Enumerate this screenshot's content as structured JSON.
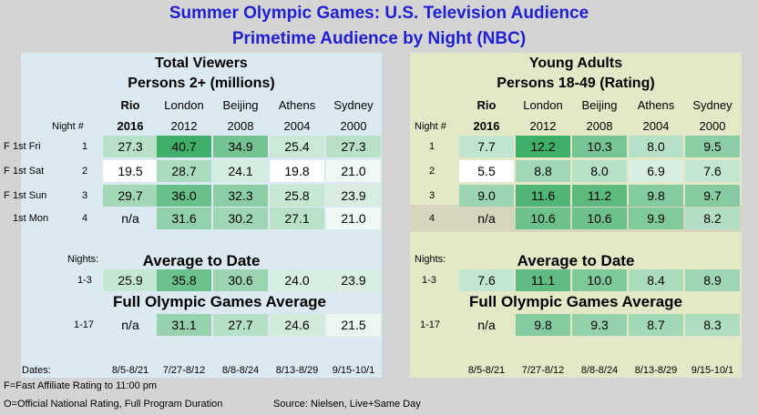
{
  "title": "Summer Olympic Games: U.S. Television Audience",
  "subtitle": "Primetime Audience by Night (NBC)",
  "chart_data": {
    "type": "table",
    "night_label": "Night #",
    "nights_label": "Nights:",
    "games": [
      {
        "city": "Rio",
        "year": "2016",
        "dates": "8/5-8/21",
        "highlight": true
      },
      {
        "city": "London",
        "year": "2012",
        "dates": "7/27-8/12"
      },
      {
        "city": "Beijing",
        "year": "2008",
        "dates": "8/8-8/24"
      },
      {
        "city": "Athens",
        "year": "2004",
        "dates": "8/13-8/29"
      },
      {
        "city": "Sydney",
        "year": "2000",
        "dates": "9/15-10/1"
      }
    ],
    "rows": [
      {
        "flag": "F",
        "label": "1st Fri",
        "night": "1"
      },
      {
        "flag": "F",
        "label": "1st Sat",
        "night": "2"
      },
      {
        "flag": "F",
        "label": "1st Sun",
        "night": "3"
      },
      {
        "flag": "",
        "label": "1st Mon",
        "night": "4"
      }
    ],
    "avg_nights": "1-3",
    "full_nights": "1-17",
    "dates_label": "Dates:",
    "panels": [
      {
        "title": "Total Viewers",
        "subtitle": "Persons 2+ (millions)",
        "nightly": [
          [
            "27.3",
            "40.7",
            "34.9",
            "25.4",
            "27.3"
          ],
          [
            "19.5",
            "28.7",
            "24.1",
            "19.8",
            "21.0"
          ],
          [
            "29.7",
            "36.0",
            "32.3",
            "25.8",
            "23.9"
          ],
          [
            "n/a",
            "31.6",
            "30.2",
            "27.1",
            "21.0"
          ]
        ],
        "avg_title": "Average to Date",
        "avg": [
          "25.9",
          "35.8",
          "30.6",
          "24.0",
          "23.9"
        ],
        "full_title": "Full Olympic Games Average",
        "full": [
          "n/a",
          "31.1",
          "27.7",
          "24.6",
          "21.5"
        ]
      },
      {
        "title": "Young Adults",
        "subtitle": "Persons 18-49 (Rating)",
        "nightly": [
          [
            "7.7",
            "12.2",
            "10.3",
            "8.0",
            "9.5"
          ],
          [
            "5.5",
            "8.8",
            "8.0",
            "6.9",
            "7.6"
          ],
          [
            "9.0",
            "11.6",
            "11.2",
            "9.8",
            "9.7"
          ],
          [
            "n/a",
            "10.6",
            "10.6",
            "9.9",
            "8.2"
          ]
        ],
        "avg_title": "Average to Date",
        "avg": [
          "7.6",
          "11.1",
          "10.0",
          "8.4",
          "8.9"
        ],
        "full_title": "Full Olympic Games Average",
        "full": [
          "n/a",
          "9.8",
          "9.3",
          "8.7",
          "8.3"
        ]
      }
    ],
    "colors": {
      "low": "#ffffff",
      "high": "#3fae69"
    }
  },
  "footnotes": {
    "fast": "F=Fast Affiliate Rating to 11:00 pm",
    "official": "O=Official National Rating, Full Program Duration",
    "source": "Source: Nielsen, Live+Same Day"
  }
}
